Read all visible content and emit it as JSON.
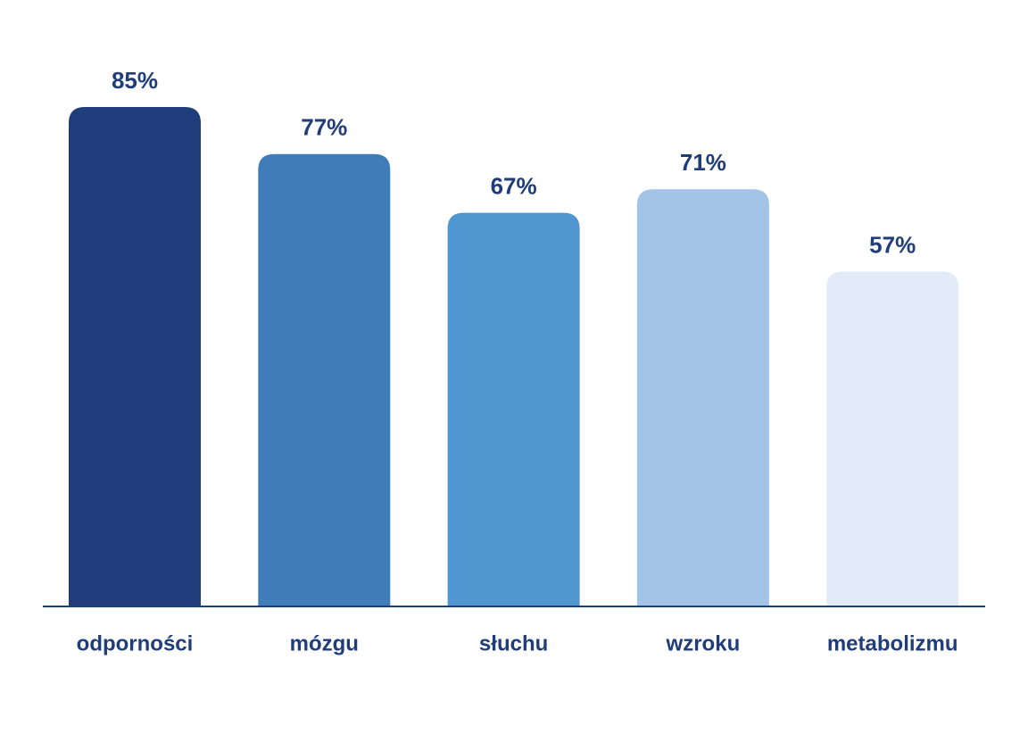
{
  "chart_data": {
    "type": "bar",
    "categories": [
      "odporności",
      "mózgu",
      "słuchu",
      "wzroku",
      "metabolizmu"
    ],
    "values": [
      85,
      77,
      67,
      71,
      57
    ],
    "value_labels": [
      "85%",
      "77%",
      "67%",
      "71%",
      "57%"
    ],
    "colors": [
      "#1f3d7a",
      "#407cba",
      "#5096d0",
      "#a3c3e7",
      "#e2ecf8"
    ]
  }
}
